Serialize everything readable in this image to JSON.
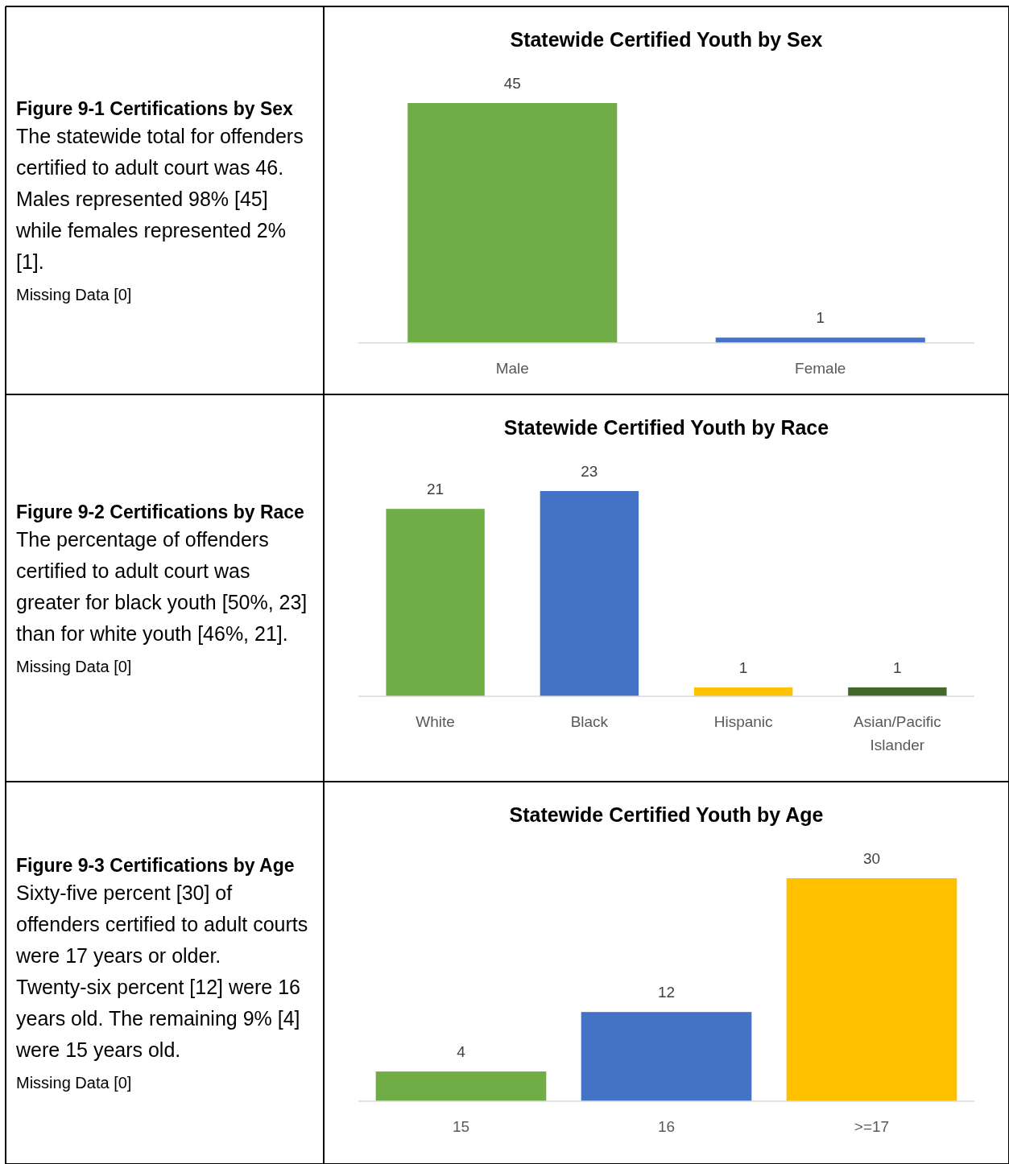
{
  "chart_data": [
    {
      "type": "other",
      "title": "Figure 9-1 Certifications by Sex",
      "annotations": [
        "The statewide total for offenders certified to adult court was 46. Males represented 98% [45] while females represented 2% [1].",
        "Missing Data [0]"
      ]
    },
    {
      "type": "bar",
      "title": "Statewide Certified Youth by Sex",
      "categories": [
        "Male",
        "Female"
      ],
      "values": [
        45,
        1
      ],
      "colors": [
        "#70ad47",
        "#4472c4"
      ],
      "data_labels": true
    },
    {
      "type": "other",
      "title": "Figure 9-2 Certifications by Race",
      "annotations": [
        "The percentage of offenders certified to adult court was greater for black youth [50%, 23] than for white youth [46%, 21].",
        "Missing Data [0]"
      ]
    },
    {
      "type": "bar",
      "title": "Statewide Certified Youth by Race",
      "categories": [
        "White",
        "Black",
        "Hispanic",
        "Asian/Pacific Islander"
      ],
      "values": [
        21,
        23,
        1,
        1
      ],
      "colors": [
        "#70ad47",
        "#4472c4",
        "#ffc000",
        "#43682b"
      ],
      "data_labels": true
    },
    {
      "type": "other",
      "title": "Figure 9-3 Certifications by Age",
      "annotations": [
        "Sixty-five percent [30] of offenders certified to adult courts were 17 years or older. Twenty-six percent [12] were 16 years old. The remaining 9% [4] were 15 years old.",
        "Missing Data [0]"
      ]
    },
    {
      "type": "bar",
      "title": "Statewide Certified Youth by Age",
      "categories": [
        "15",
        "16",
        ">=17"
      ],
      "values": [
        4,
        12,
        30
      ],
      "colors": [
        "#70ad47",
        "#4472c4",
        "#ffc000"
      ],
      "data_labels": true
    }
  ]
}
